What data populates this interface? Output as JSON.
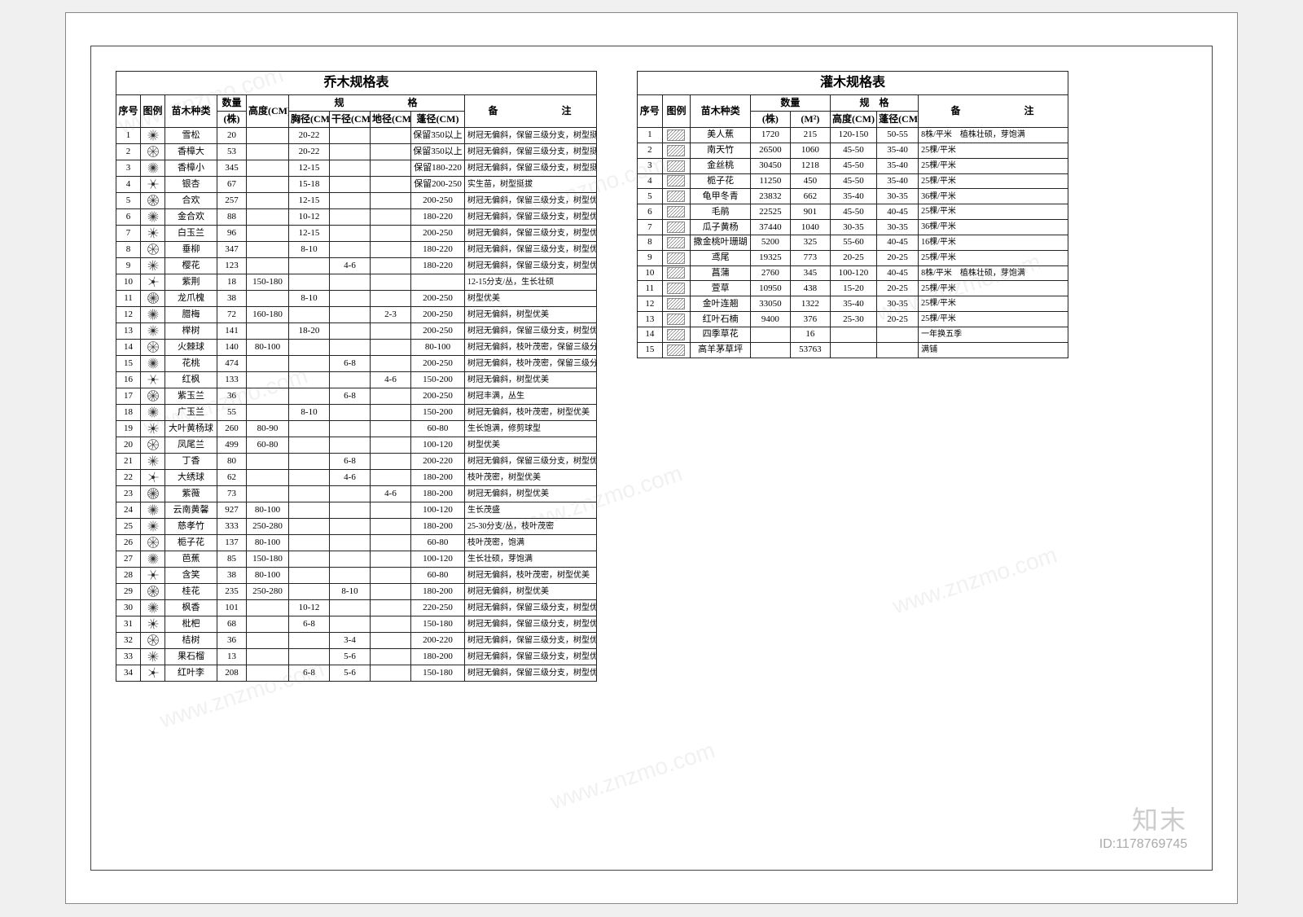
{
  "watermark_text": "www.znzmo.com",
  "logo": {
    "name": "知末",
    "id_label": "ID:",
    "id_value": "1178769745"
  },
  "left_table": {
    "title": "乔木规格表",
    "headers": {
      "seq": "序号",
      "legend": "图例",
      "species": "苗木种类",
      "qty_group": "数量",
      "qty_unit": "(株)",
      "height": "高度(CM)",
      "spec_group": "规　　格",
      "chest": "胸径(CM)",
      "trunk": "干径(CM)",
      "ground": "地径(CM)",
      "crown": "蓬径(CM)",
      "remarks": "备　　注"
    },
    "rows": [
      {
        "n": "1",
        "name": "雪松",
        "qty": "20",
        "h": "",
        "c": "20-22",
        "t": "",
        "g": "",
        "p": "保留350以上",
        "r": "树冠无偏斜，保留三级分支，树型挺拔"
      },
      {
        "n": "2",
        "name": "香樟大",
        "qty": "53",
        "h": "",
        "c": "20-22",
        "t": "",
        "g": "",
        "p": "保留350以上",
        "r": "树冠无偏斜，保留三级分支，树型挺拔"
      },
      {
        "n": "3",
        "name": "香樟小",
        "qty": "345",
        "h": "",
        "c": "12-15",
        "t": "",
        "g": "",
        "p": "保留180-220",
        "r": "树冠无偏斜，保留三级分支，树型挺拔"
      },
      {
        "n": "4",
        "name": "银杏",
        "qty": "67",
        "h": "",
        "c": "15-18",
        "t": "",
        "g": "",
        "p": "保留200-250",
        "r": "实生苗，树型挺拔"
      },
      {
        "n": "5",
        "name": "合欢",
        "qty": "257",
        "h": "",
        "c": "12-15",
        "t": "",
        "g": "",
        "p": "200-250",
        "r": "树冠无偏斜，保留三级分支，树型优美"
      },
      {
        "n": "6",
        "name": "金合欢",
        "qty": "88",
        "h": "",
        "c": "10-12",
        "t": "",
        "g": "",
        "p": "180-220",
        "r": "树冠无偏斜，保留三级分支，树型优美"
      },
      {
        "n": "7",
        "name": "白玉兰",
        "qty": "96",
        "h": "",
        "c": "12-15",
        "t": "",
        "g": "",
        "p": "200-250",
        "r": "树冠无偏斜，保留三级分支，树型优美"
      },
      {
        "n": "8",
        "name": "垂柳",
        "qty": "347",
        "h": "",
        "c": "8-10",
        "t": "",
        "g": "",
        "p": "180-220",
        "r": "树冠无偏斜，保留三级分支，树型优美"
      },
      {
        "n": "9",
        "name": "樱花",
        "qty": "123",
        "h": "",
        "c": "",
        "t": "4-6",
        "g": "",
        "p": "180-220",
        "r": "树冠无偏斜，保留三级分支，树型优美"
      },
      {
        "n": "10",
        "name": "紫荆",
        "qty": "18",
        "h": "150-180",
        "c": "",
        "t": "",
        "g": "",
        "p": "",
        "r": "12-15分支/丛，生长壮硕"
      },
      {
        "n": "11",
        "name": "龙爪槐",
        "qty": "38",
        "h": "",
        "c": "8-10",
        "t": "",
        "g": "",
        "p": "200-250",
        "r": "树型优美"
      },
      {
        "n": "12",
        "name": "腊梅",
        "qty": "72",
        "h": "160-180",
        "c": "",
        "t": "",
        "g": "2-3",
        "p": "200-250",
        "r": "树冠无偏斜，树型优美"
      },
      {
        "n": "13",
        "name": "榉树",
        "qty": "141",
        "h": "",
        "c": "18-20",
        "t": "",
        "g": "",
        "p": "200-250",
        "r": "树冠无偏斜，保留三级分支，树型优美"
      },
      {
        "n": "14",
        "name": "火棘球",
        "qty": "140",
        "h": "80-100",
        "c": "",
        "t": "",
        "g": "",
        "p": "80-100",
        "r": "树冠无偏斜，枝叶茂密，保留三级分支"
      },
      {
        "n": "15",
        "name": "花桃",
        "qty": "474",
        "h": "",
        "c": "",
        "t": "6-8",
        "g": "",
        "p": "200-250",
        "r": "树冠无偏斜，枝叶茂密，保留三级分支"
      },
      {
        "n": "16",
        "name": "红枫",
        "qty": "133",
        "h": "",
        "c": "",
        "t": "",
        "g": "4-6",
        "p": "150-200",
        "r": "树冠无偏斜，树型优美"
      },
      {
        "n": "17",
        "name": "紫玉兰",
        "qty": "36",
        "h": "",
        "c": "",
        "t": "6-8",
        "g": "",
        "p": "200-250",
        "r": "树冠丰满，丛生"
      },
      {
        "n": "18",
        "name": "广玉兰",
        "qty": "55",
        "h": "",
        "c": "8-10",
        "t": "",
        "g": "",
        "p": "150-200",
        "r": "树冠无偏斜，枝叶茂密，树型优美"
      },
      {
        "n": "19",
        "name": "大叶黄杨球",
        "qty": "260",
        "h": "80-90",
        "c": "",
        "t": "",
        "g": "",
        "p": "60-80",
        "r": "生长饱满，修剪球型"
      },
      {
        "n": "20",
        "name": "凤尾兰",
        "qty": "499",
        "h": "60-80",
        "c": "",
        "t": "",
        "g": "",
        "p": "100-120",
        "r": "树型优美"
      },
      {
        "n": "21",
        "name": "丁香",
        "qty": "80",
        "h": "",
        "c": "",
        "t": "6-8",
        "g": "",
        "p": "200-220",
        "r": "树冠无偏斜，保留三级分支，树型优美"
      },
      {
        "n": "22",
        "name": "大绣球",
        "qty": "62",
        "h": "",
        "c": "",
        "t": "4-6",
        "g": "",
        "p": "180-200",
        "r": "枝叶茂密，树型优美"
      },
      {
        "n": "23",
        "name": "紫薇",
        "qty": "73",
        "h": "",
        "c": "",
        "t": "",
        "g": "4-6",
        "p": "180-200",
        "r": "树冠无偏斜，树型优美"
      },
      {
        "n": "24",
        "name": "云南黄馨",
        "qty": "927",
        "h": "80-100",
        "c": "",
        "t": "",
        "g": "",
        "p": "100-120",
        "r": "生长茂盛"
      },
      {
        "n": "25",
        "name": "慈孝竹",
        "qty": "333",
        "h": "250-280",
        "c": "",
        "t": "",
        "g": "",
        "p": "180-200",
        "r": "25-30分支/丛，枝叶茂密"
      },
      {
        "n": "26",
        "name": "栀子花",
        "qty": "137",
        "h": "80-100",
        "c": "",
        "t": "",
        "g": "",
        "p": "60-80",
        "r": "枝叶茂密，饱满"
      },
      {
        "n": "27",
        "name": "芭蕉",
        "qty": "85",
        "h": "150-180",
        "c": "",
        "t": "",
        "g": "",
        "p": "100-120",
        "r": "生长壮硕，芽饱满"
      },
      {
        "n": "28",
        "name": "含笑",
        "qty": "38",
        "h": "80-100",
        "c": "",
        "t": "",
        "g": "",
        "p": "60-80",
        "r": "树冠无偏斜，枝叶茂密，树型优美"
      },
      {
        "n": "29",
        "name": "桂花",
        "qty": "235",
        "h": "250-280",
        "c": "",
        "t": "8-10",
        "g": "",
        "p": "180-200",
        "r": "树冠无偏斜，树型优美"
      },
      {
        "n": "30",
        "name": "枫香",
        "qty": "101",
        "h": "",
        "c": "10-12",
        "t": "",
        "g": "",
        "p": "220-250",
        "r": "树冠无偏斜，保留三级分支，树型优美"
      },
      {
        "n": "31",
        "name": "枇杷",
        "qty": "68",
        "h": "",
        "c": "6-8",
        "t": "",
        "g": "",
        "p": "150-180",
        "r": "树冠无偏斜，保留三级分支，树型优美"
      },
      {
        "n": "32",
        "name": "桔树",
        "qty": "36",
        "h": "",
        "c": "",
        "t": "3-4",
        "g": "",
        "p": "200-220",
        "r": "树冠无偏斜，保留三级分支，树型优美"
      },
      {
        "n": "33",
        "name": "果石榴",
        "qty": "13",
        "h": "",
        "c": "",
        "t": "5-6",
        "g": "",
        "p": "180-200",
        "r": "树冠无偏斜，保留三级分支，树型优美"
      },
      {
        "n": "34",
        "name": "红叶李",
        "qty": "208",
        "h": "",
        "c": "6-8",
        "t": "5-6",
        "g": "",
        "p": "150-180",
        "r": "树冠无偏斜，保留三级分支，树型优美"
      }
    ]
  },
  "right_table": {
    "title": "灌木规格表",
    "headers": {
      "seq": "序号",
      "legend": "图例",
      "species": "苗木种类",
      "qty_group": "数量",
      "qty_unit1": "(株)",
      "qty_unit2": "(M²)",
      "spec_group": "规　格",
      "height": "高度(CM)",
      "crown": "蓬径(CM)",
      "remarks": "备　　注"
    },
    "rows": [
      {
        "n": "1",
        "name": "美人蕉",
        "q1": "1720",
        "q2": "215",
        "h": "120-150",
        "p": "50-55",
        "r": "8株/平米　植株壮硕，芽饱满"
      },
      {
        "n": "2",
        "name": "南天竹",
        "q1": "26500",
        "q2": "1060",
        "h": "45-50",
        "p": "35-40",
        "r": "25棵/平米"
      },
      {
        "n": "3",
        "name": "金丝桃",
        "q1": "30450",
        "q2": "1218",
        "h": "45-50",
        "p": "35-40",
        "r": "25棵/平米"
      },
      {
        "n": "4",
        "name": "栀子花",
        "q1": "11250",
        "q2": "450",
        "h": "45-50",
        "p": "35-40",
        "r": "25棵/平米"
      },
      {
        "n": "5",
        "name": "龟甲冬青",
        "q1": "23832",
        "q2": "662",
        "h": "35-40",
        "p": "30-35",
        "r": "36棵/平米"
      },
      {
        "n": "6",
        "name": "毛鹃",
        "q1": "22525",
        "q2": "901",
        "h": "45-50",
        "p": "40-45",
        "r": "25棵/平米"
      },
      {
        "n": "7",
        "name": "瓜子黄杨",
        "q1": "37440",
        "q2": "1040",
        "h": "30-35",
        "p": "30-35",
        "r": "36棵/平米"
      },
      {
        "n": "8",
        "name": "撒金桃叶珊瑚",
        "q1": "5200",
        "q2": "325",
        "h": "55-60",
        "p": "40-45",
        "r": "16棵/平米"
      },
      {
        "n": "9",
        "name": "鸢尾",
        "q1": "19325",
        "q2": "773",
        "h": "20-25",
        "p": "20-25",
        "r": "25棵/平米"
      },
      {
        "n": "10",
        "name": "菖蒲",
        "q1": "2760",
        "q2": "345",
        "h": "100-120",
        "p": "40-45",
        "r": "8株/平米　植株壮硕，芽饱满"
      },
      {
        "n": "11",
        "name": "萱草",
        "q1": "10950",
        "q2": "438",
        "h": "15-20",
        "p": "20-25",
        "r": "25棵/平米"
      },
      {
        "n": "12",
        "name": "金叶连翘",
        "q1": "33050",
        "q2": "1322",
        "h": "35-40",
        "p": "30-35",
        "r": "25棵/平米"
      },
      {
        "n": "13",
        "name": "红叶石楠",
        "q1": "9400",
        "q2": "376",
        "h": "25-30",
        "p": "20-25",
        "r": "25棵/平米"
      },
      {
        "n": "14",
        "name": "四季草花",
        "q1": "",
        "q2": "16",
        "h": "",
        "p": "",
        "r": "一年换五季"
      },
      {
        "n": "15",
        "name": "高羊茅草坪",
        "q1": "",
        "q2": "53763",
        "h": "",
        "p": "",
        "r": "满铺"
      }
    ]
  }
}
